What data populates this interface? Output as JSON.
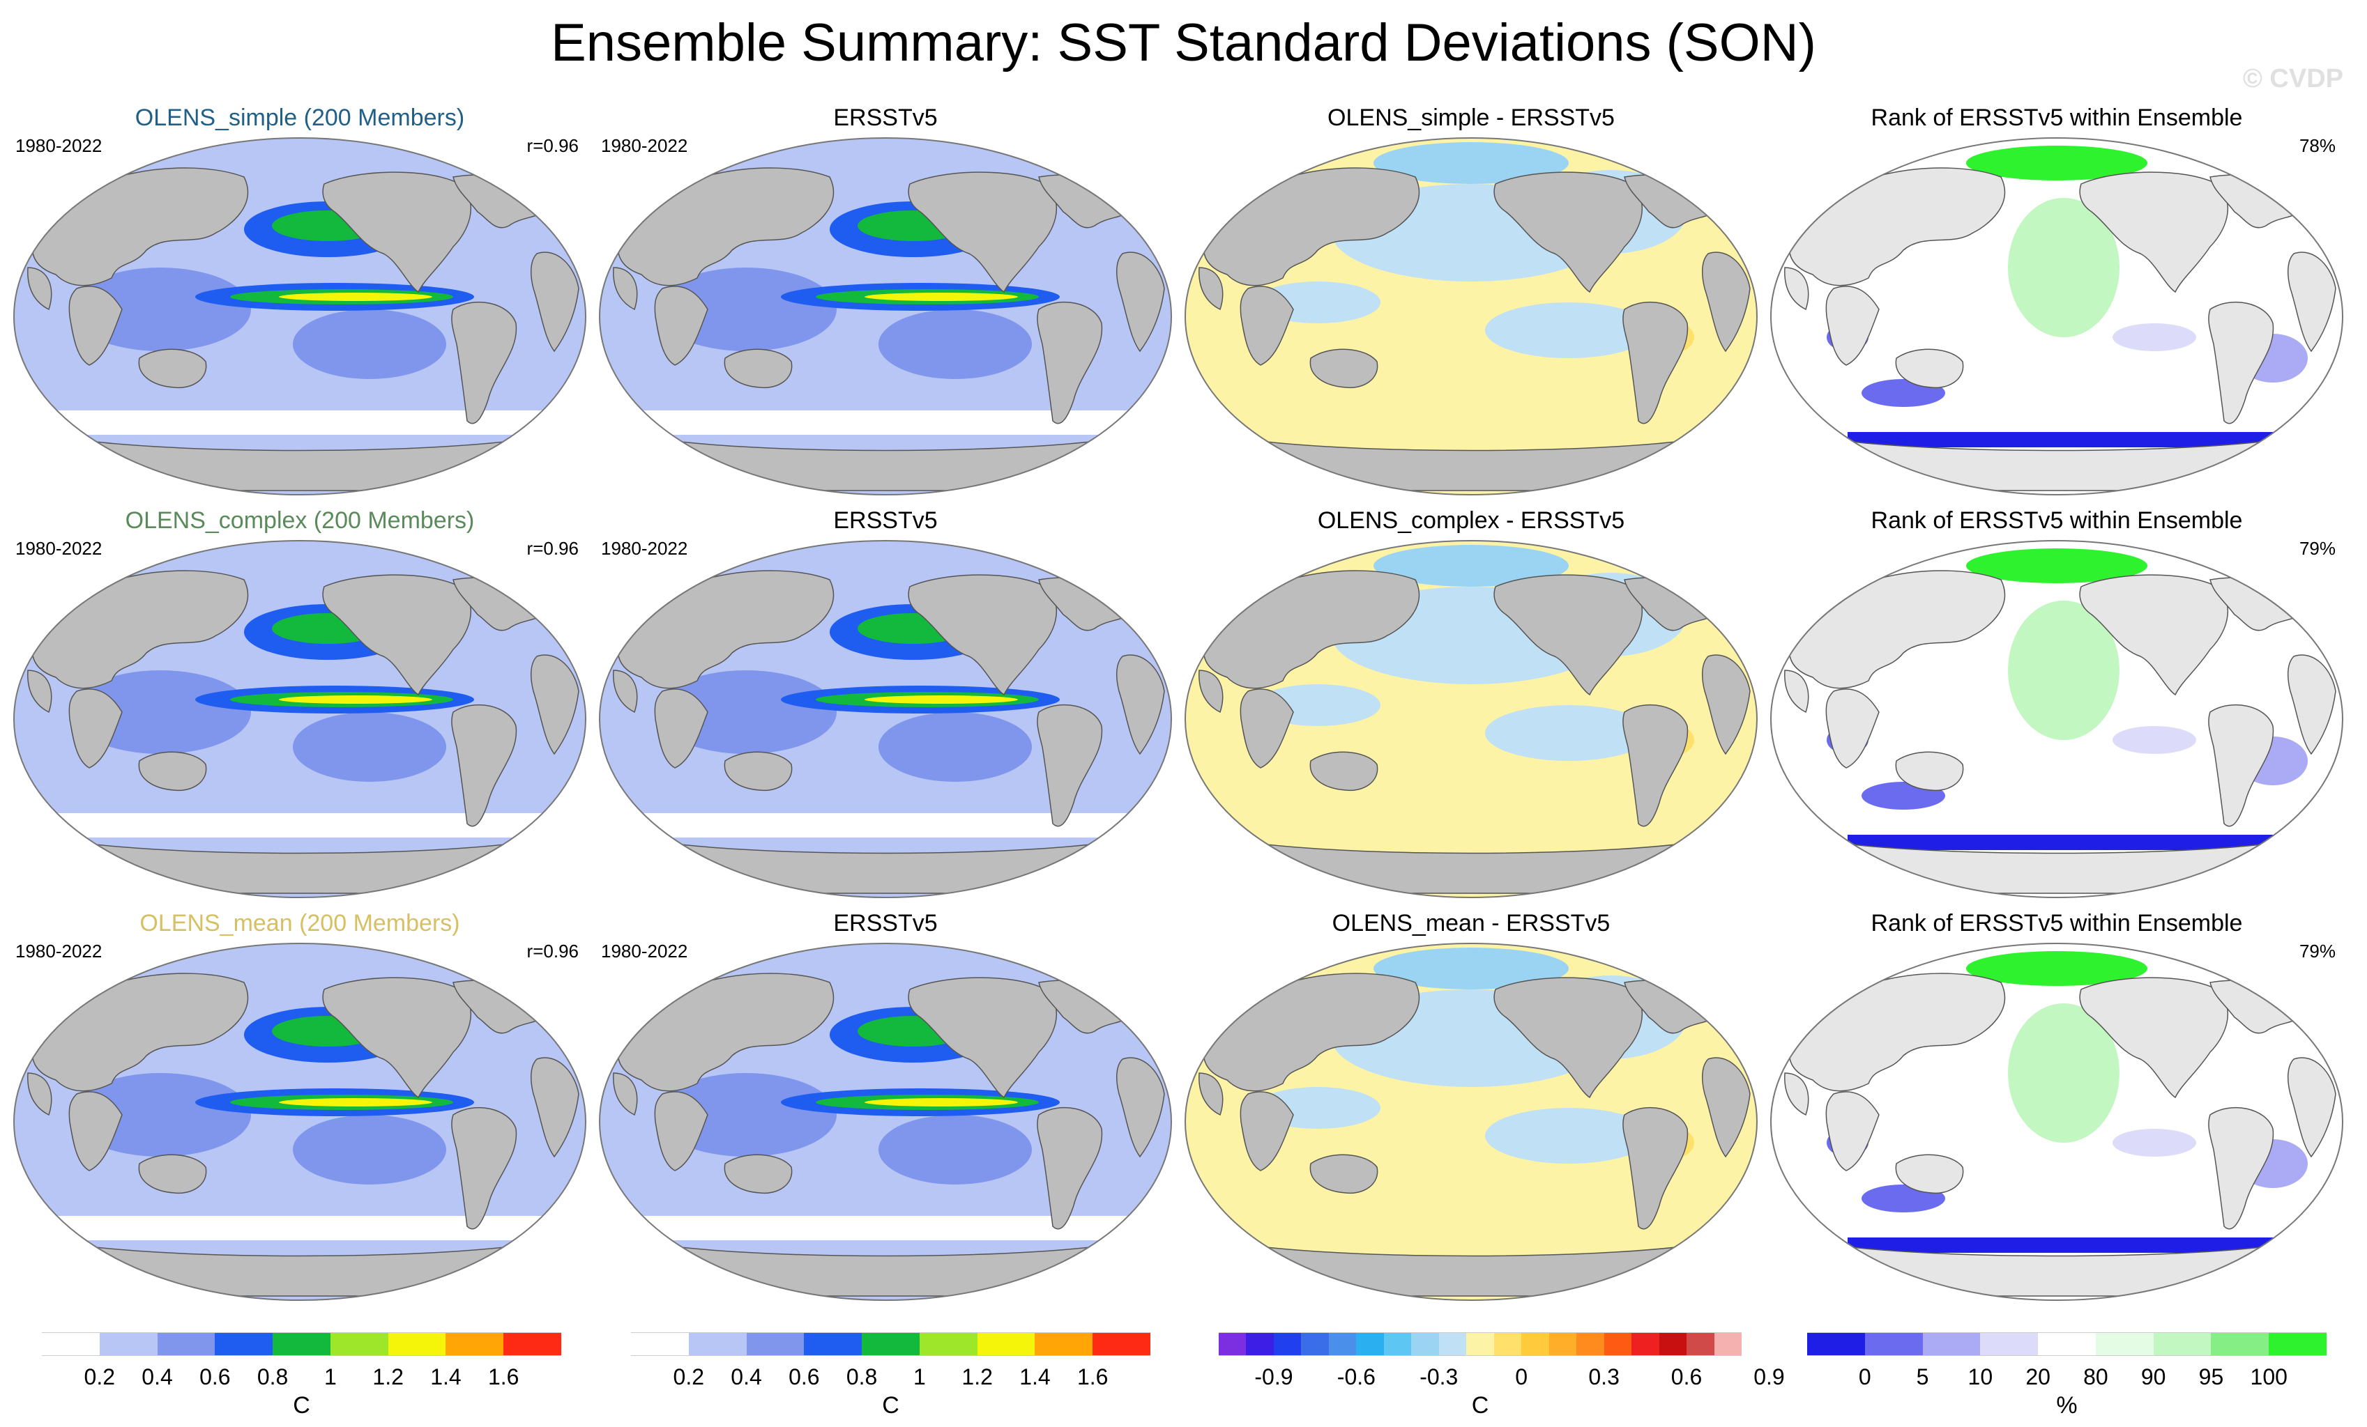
{
  "title": "Ensemble Summary: SST Standard Deviations (SON)",
  "watermark": "© CVDP",
  "colors": {
    "land": "#bdbdbd",
    "ocean_sd_low": "#b8c6f5",
    "ocean_sd_mid": "#7f96ec",
    "ocean_sd_high": "#1f5df0",
    "diff_pos": "#fdf3a6",
    "diff_neg": "#bfe0f5",
    "rank_low": "#1e1ee6",
    "rank_high": "#2ff22f"
  },
  "rows": [
    {
      "model_title": "OLENS_simple (200 Members)",
      "model_title_color": "#1f5f88",
      "period": "1980-2022",
      "pattern_corr": "r=0.96",
      "obs_title": "ERSSTv5",
      "obs_period": "1980-2022",
      "diff_title": "OLENS_simple - ERSSTv5",
      "rank_title": "Rank of ERSSTv5 within Ensemble",
      "rank_pct": "78%"
    },
    {
      "model_title": "OLENS_complex (200 Members)",
      "model_title_color": "#5a8a5a",
      "period": "1980-2022",
      "pattern_corr": "r=0.96",
      "obs_title": "ERSSTv5",
      "obs_period": "1980-2022",
      "diff_title": "OLENS_complex - ERSSTv5",
      "rank_title": "Rank of ERSSTv5 within Ensemble",
      "rank_pct": "79%"
    },
    {
      "model_title": "OLENS_mean (200 Members)",
      "model_title_color": "#d6c063",
      "period": "1980-2022",
      "pattern_corr": "r=0.96",
      "obs_title": "ERSSTv5",
      "obs_period": "1980-2022",
      "diff_title": "OLENS_mean - ERSSTv5",
      "rank_title": "Rank of ERSSTv5 within Ensemble",
      "rank_pct": "79%"
    }
  ],
  "colorbars": {
    "sd": {
      "colors": [
        "#ffffff",
        "#b8c6f5",
        "#7f96ec",
        "#1f5df0",
        "#12b93c",
        "#9de62a",
        "#f5f50a",
        "#ffa505",
        "#ff2a14"
      ],
      "ticks": [
        "0.2",
        "0.4",
        "0.6",
        "0.8",
        "1",
        "1.2",
        "1.4",
        "1.6"
      ],
      "unit": "C"
    },
    "diff": {
      "colors": [
        "#7b2fe0",
        "#3c1ee6",
        "#2040f0",
        "#3a6ee8",
        "#4a8fea",
        "#2ab0f0",
        "#5ec6f2",
        "#9bd4f3",
        "#bfe0f5",
        "#fdf3a6",
        "#ffe06a",
        "#ffcb3c",
        "#ffae2a",
        "#ff8a1e",
        "#ff5a14",
        "#ee2020",
        "#c81010",
        "#d04a4a",
        "#f5b0b0"
      ],
      "ticks": [
        "-0.9",
        "-0.6",
        "-0.3",
        "0",
        "0.3",
        "0.6",
        "0.9"
      ],
      "unit": "C"
    },
    "rank": {
      "colors": [
        "#1e1ee6",
        "#6b6bf0",
        "#aaaaf5",
        "#dcdcfa",
        "#ffffff",
        "#e4fbe4",
        "#c2f7c2",
        "#85ef85",
        "#2ff22f"
      ],
      "ticks": [
        "0",
        "5",
        "10",
        "20",
        "80",
        "90",
        "95",
        "100"
      ],
      "unit": "%"
    }
  }
}
